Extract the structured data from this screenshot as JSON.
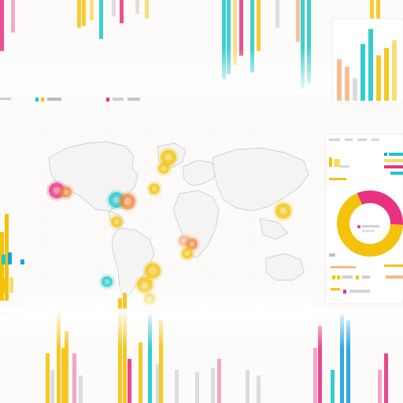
{
  "palette": {
    "yellow": "#f4c20d",
    "light_yellow": "#f7dc66",
    "cyan": "#1fc7c9",
    "blue": "#1a9fe0",
    "pink": "#e8327f",
    "light_pink": "#f29bbd",
    "orange": "#f18a3e",
    "peach": "#f6b68a",
    "gray": "#d8d8d8",
    "map_line": "#c9c9c9",
    "grid": "#ececec"
  },
  "top_strip_bars": [
    {
      "color": "pink",
      "value": 0.55
    },
    {
      "color": "light_pink",
      "value": 0.35
    },
    {
      "color": "yellow",
      "value": 0.3
    },
    {
      "color": "yellow",
      "value": 0.28
    },
    {
      "color": "light_yellow",
      "value": 0.22
    },
    {
      "color": "cyan",
      "value": 0.42
    },
    {
      "color": "gray",
      "value": 0.18
    },
    {
      "color": "pink",
      "value": 0.25
    },
    {
      "color": "gray",
      "value": 0.15
    },
    {
      "color": "light_yellow",
      "value": 0.2
    },
    {
      "color": "cyan",
      "value": 0.85
    },
    {
      "color": "cyan",
      "value": 0.8
    },
    {
      "color": "light_yellow",
      "value": 0.7
    },
    {
      "color": "pink",
      "value": 0.6
    },
    {
      "color": "cyan",
      "value": 0.78
    },
    {
      "color": "yellow",
      "value": 0.55
    },
    {
      "color": "gray",
      "value": 0.3
    },
    {
      "color": "peach",
      "value": 0.45
    },
    {
      "color": "cyan",
      "value": 0.95
    },
    {
      "color": "cyan",
      "value": 0.9
    },
    {
      "color": "yellow",
      "value": 1.0
    },
    {
      "color": "yellow",
      "value": 0.7
    }
  ],
  "top_right_panel_bars": [
    {
      "color": "peach",
      "value": 0.55
    },
    {
      "color": "peach",
      "value": 0.45
    },
    {
      "color": "gray",
      "value": 0.3
    },
    {
      "color": "cyan",
      "value": 0.75
    },
    {
      "color": "cyan",
      "value": 0.95
    },
    {
      "color": "yellow",
      "value": 0.6
    },
    {
      "color": "yellow",
      "value": 0.7
    },
    {
      "color": "light_yellow",
      "value": 0.8
    }
  ],
  "map_bubbles": [
    {
      "color": "pink",
      "size": "m",
      "region": "north-america-west"
    },
    {
      "color": "orange",
      "size": "s",
      "region": "north-america-west"
    },
    {
      "color": "cyan",
      "size": "m",
      "region": "north-america-east"
    },
    {
      "color": "orange",
      "size": "m",
      "region": "north-america-east"
    },
    {
      "color": "yellow",
      "size": "s",
      "region": "central-america"
    },
    {
      "color": "yellow",
      "size": "m",
      "region": "greenland"
    },
    {
      "color": "yellow",
      "size": "s",
      "region": "greenland"
    },
    {
      "color": "yellow",
      "size": "s",
      "region": "europe"
    },
    {
      "color": "peach",
      "size": "s",
      "region": "africa"
    },
    {
      "color": "orange",
      "size": "s",
      "region": "africa"
    },
    {
      "color": "yellow",
      "size": "s",
      "region": "africa"
    },
    {
      "color": "yellow",
      "size": "m",
      "region": "east-asia"
    },
    {
      "color": "cyan",
      "size": "s",
      "region": "south-america"
    },
    {
      "color": "yellow",
      "size": "m",
      "region": "south-america"
    },
    {
      "color": "yellow",
      "size": "s",
      "region": "south-america"
    },
    {
      "color": "yellow",
      "size": "m",
      "region": "south-america"
    }
  ],
  "donut": {
    "segments": [
      {
        "color": "pink",
        "value": 0.32
      },
      {
        "color": "yellow",
        "value": 0.68
      }
    ]
  },
  "left_bars": [
    {
      "color": "yellow",
      "value": 0.75
    },
    {
      "color": "yellow",
      "value": 0.95
    },
    {
      "color": "cyan",
      "value": 0.45
    },
    {
      "color": "blue",
      "value": 0.55
    },
    {
      "color": "yellow",
      "value": 0.6
    },
    {
      "color": "light_yellow",
      "value": 0.65
    },
    {
      "color": "blue",
      "value": 0.4
    }
  ],
  "bottom_bars": [
    {
      "color": "yellow",
      "value": 0.45
    },
    {
      "color": "gray",
      "value": 0.3
    },
    {
      "color": "yellow",
      "value": 0.85
    },
    {
      "color": "yellow",
      "value": 0.5
    },
    {
      "color": "yellow",
      "value": 0.65
    },
    {
      "color": "light_pink",
      "value": 0.45
    },
    {
      "color": "gray",
      "value": 0.25
    },
    {
      "color": "yellow",
      "value": 0.95
    },
    {
      "color": "yellow",
      "value": 1.0
    },
    {
      "color": "pink",
      "value": 0.4
    },
    {
      "color": "yellow",
      "value": 0.55
    },
    {
      "color": "cyan",
      "value": 0.8
    },
    {
      "color": "gray",
      "value": 0.35
    },
    {
      "color": "yellow",
      "value": 0.75
    },
    {
      "color": "gray",
      "value": 0.3
    },
    {
      "color": "gray",
      "value": 0.28
    },
    {
      "color": "gray",
      "value": 0.32
    },
    {
      "color": "light_pink",
      "value": 0.4
    },
    {
      "color": "gray",
      "value": 0.3
    },
    {
      "color": "gray",
      "value": 0.25
    },
    {
      "color": "light_pink",
      "value": 0.5
    },
    {
      "color": "pink",
      "value": 0.7
    },
    {
      "color": "cyan",
      "value": 0.3
    },
    {
      "color": "blue",
      "value": 0.8
    },
    {
      "color": "blue",
      "value": 0.75
    },
    {
      "color": "light_pink",
      "value": 0.3
    },
    {
      "color": "pink",
      "value": 0.45
    }
  ]
}
